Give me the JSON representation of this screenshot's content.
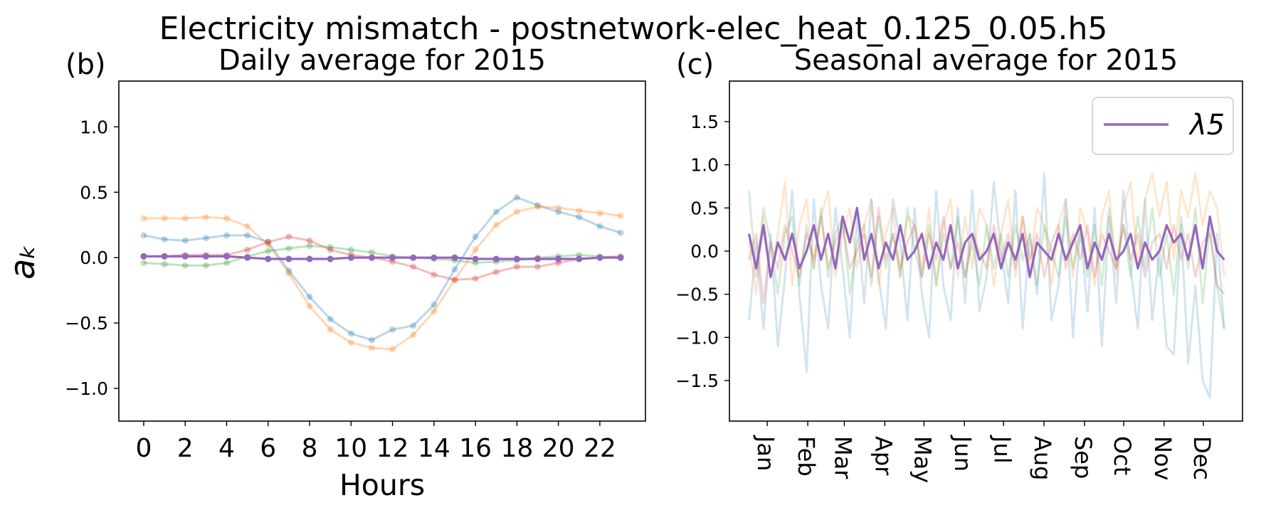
{
  "figure": {
    "suptitle": "Electricity mismatch - postnetwork-elec_heat_0.125_0.05.h5"
  },
  "chart_data": [
    {
      "type": "line",
      "panel_label": "(b)",
      "title": "Daily average for 2015",
      "xlabel": "Hours",
      "ylabel": "a_k",
      "ylabel_display": "aₖ",
      "xlim": [
        -1.2,
        24.2
      ],
      "ylim": [
        -1.25,
        1.35
      ],
      "xticks": [
        0,
        2,
        4,
        6,
        8,
        10,
        12,
        14,
        16,
        18,
        20,
        22
      ],
      "xtick_labels": [
        "0",
        "2",
        "4",
        "6",
        "8",
        "10",
        "12",
        "14",
        "16",
        "18",
        "20",
        "22"
      ],
      "yticks": [
        -1.0,
        -0.5,
        0.0,
        0.5,
        1.0
      ],
      "ytick_labels": [
        "−1.0",
        "−0.5",
        "0.0",
        "0.5",
        "1.0"
      ],
      "grid": false,
      "markers": true,
      "x": [
        0,
        1,
        2,
        3,
        4,
        5,
        6,
        7,
        8,
        9,
        10,
        11,
        12,
        13,
        14,
        15,
        16,
        17,
        18,
        19,
        20,
        21,
        22,
        23
      ],
      "series": [
        {
          "color": "#1f77b4",
          "opacity": 0.3,
          "values": [
            0.17,
            0.14,
            0.13,
            0.15,
            0.17,
            0.17,
            0.12,
            -0.1,
            -0.3,
            -0.47,
            -0.58,
            -0.63,
            -0.55,
            -0.52,
            -0.36,
            -0.09,
            0.16,
            0.35,
            0.46,
            0.4,
            0.35,
            0.31,
            0.24,
            0.19
          ]
        },
        {
          "color": "#ff7f0e",
          "opacity": 0.3,
          "values": [
            0.3,
            0.3,
            0.3,
            0.31,
            0.3,
            0.24,
            0.1,
            -0.12,
            -0.37,
            -0.55,
            -0.65,
            -0.69,
            -0.7,
            -0.59,
            -0.41,
            -0.17,
            0.06,
            0.25,
            0.35,
            0.39,
            0.38,
            0.36,
            0.34,
            0.32
          ]
        },
        {
          "color": "#2ca02c",
          "opacity": 0.3,
          "values": [
            -0.04,
            -0.05,
            -0.06,
            -0.06,
            -0.04,
            0.01,
            0.05,
            0.07,
            0.09,
            0.08,
            0.06,
            0.04,
            0.01,
            0.0,
            -0.01,
            -0.02,
            -0.04,
            -0.03,
            -0.02,
            0.0,
            0.01,
            0.02,
            0.01,
            0.0
          ]
        },
        {
          "color": "#d62728",
          "opacity": 0.3,
          "values": [
            0.01,
            0.01,
            0.02,
            0.02,
            0.02,
            0.06,
            0.12,
            0.16,
            0.13,
            0.06,
            0.02,
            0.0,
            -0.03,
            -0.07,
            -0.13,
            -0.17,
            -0.16,
            -0.11,
            -0.07,
            -0.07,
            -0.04,
            -0.01,
            0.0,
            0.01
          ]
        },
        {
          "name": "λ5",
          "color": "#9467bd",
          "opacity": 1.0,
          "values": [
            0.01,
            0.01,
            0.01,
            0.01,
            0.01,
            0.0,
            -0.01,
            -0.01,
            -0.01,
            -0.01,
            0.0,
            0.0,
            0.0,
            0.0,
            0.0,
            0.0,
            -0.01,
            -0.01,
            -0.01,
            -0.01,
            -0.01,
            -0.01,
            0.0,
            0.0
          ]
        }
      ]
    },
    {
      "type": "line",
      "panel_label": "(c)",
      "title": "Seasonal average for 2015",
      "xlabel": "",
      "ylabel": "",
      "xlim": [
        -14,
        379
      ],
      "ylim": [
        -1.97,
        1.97
      ],
      "xticks": [
        15,
        46,
        74,
        105,
        135,
        166,
        196,
        227,
        258,
        288,
        319,
        349
      ],
      "xtick_labels": [
        "Jan",
        "Feb",
        "Mar",
        "Apr",
        "May",
        "Jun",
        "Jul",
        "Aug",
        "Sep",
        "Oct",
        "Nov",
        "Dec"
      ],
      "yticks": [
        -1.5,
        -1.0,
        -0.5,
        0.0,
        0.5,
        1.0,
        1.5
      ],
      "ytick_labels": [
        "−1.5",
        "−1.0",
        "−0.5",
        "0.0",
        "0.5",
        "1.0",
        "1.5"
      ],
      "grid": false,
      "legend": {
        "position": "top-right",
        "entries": [
          "λ5"
        ]
      },
      "x_domain": {
        "start_day": 1,
        "end_day": 365
      },
      "series": [
        {
          "color": "#1f77b4",
          "opacity": 0.2,
          "values": [
            -0.8,
            0.1,
            -0.9,
            0.2,
            -1.1,
            -0.3,
            0.7,
            -0.5,
            -1.4,
            0.6,
            -0.4,
            -0.9,
            0.5,
            -0.2,
            -1.0,
            0.4,
            -0.6,
            0.6,
            -0.3,
            -0.9,
            0.6,
            0.1,
            -0.8,
            0.5,
            -0.5,
            -1.0,
            0.7,
            -0.4,
            -0.8,
            0.5,
            -0.6,
            0.7,
            -0.7,
            -0.3,
            0.8,
            0.0,
            -0.6,
            0.7,
            -0.9,
            0.2,
            -0.5,
            0.9,
            -0.8,
            -0.4,
            0.6,
            -1.0,
            0.3,
            -0.7,
            0.5,
            -1.1,
            0.4,
            -0.6,
            0.7,
            -0.2,
            -0.9,
            0.6,
            -0.8,
            0.0,
            -1.1,
            -1.2,
            0.3,
            -1.3,
            -0.4,
            -1.5,
            -1.7,
            0.2,
            -0.9
          ]
        },
        {
          "color": "#ff7f0e",
          "opacity": 0.2,
          "values": [
            0.1,
            -0.5,
            0.4,
            -0.3,
            0.2,
            0.8,
            -0.4,
            0.3,
            0.6,
            -0.2,
            0.4,
            0.7,
            -0.3,
            0.2,
            0.5,
            -0.2,
            0.3,
            0.6,
            -0.4,
            0.2,
            0.5,
            -0.3,
            0.4,
            0.3,
            -0.2,
            0.5,
            -0.4,
            0.3,
            0.6,
            -0.3,
            0.4,
            -0.2,
            0.5,
            0.3,
            -0.4,
            0.2,
            0.6,
            -0.3,
            0.4,
            -0.2,
            0.5,
            0.3,
            -0.4,
            0.3,
            0.6,
            -0.3,
            0.5,
            0.2,
            -0.4,
            0.4,
            0.7,
            -0.3,
            0.5,
            0.8,
            -0.2,
            0.6,
            0.9,
            0.4,
            0.8,
            -0.1,
            0.7,
            0.4,
            0.9,
            0.3,
            0.7,
            0.5,
            -0.3
          ]
        },
        {
          "color": "#2ca02c",
          "opacity": 0.2,
          "values": [
            0.7,
            -0.3,
            0.5,
            0.1,
            -0.5,
            0.2,
            0.4,
            -0.4,
            0.3,
            -0.2,
            0.5,
            -0.3,
            0.2,
            0.4,
            -0.5,
            0.1,
            0.3,
            -0.4,
            0.4,
            -0.2,
            0.2,
            -0.3,
            0.5,
            0.0,
            -0.3,
            0.3,
            -0.4,
            0.2,
            -0.2,
            0.4,
            -0.3,
            0.1,
            -0.4,
            0.3,
            -0.2,
            0.2,
            -0.3,
            0.3,
            -0.1,
            0.2,
            -0.4,
            0.3,
            0.0,
            -0.3,
            0.4,
            -0.2,
            0.2,
            -0.3,
            0.3,
            -0.4,
            0.5,
            -0.2,
            0.3,
            -0.3,
            0.4,
            -0.2,
            0.5,
            -0.3,
            0.2,
            -0.5,
            0.4,
            -0.2,
            0.5,
            -0.6,
            0.3,
            -0.4,
            -0.9
          ]
        },
        {
          "color": "#d62728",
          "opacity": 0.2,
          "values": [
            -0.1,
            0.2,
            -0.6,
            0.1,
            -0.2,
            0.3,
            0.0,
            -0.3,
            0.2,
            -0.1,
            0.4,
            -0.2,
            0.1,
            0.3,
            -0.2,
            0.0,
            0.2,
            -0.3,
            0.5,
            -0.1,
            0.2,
            -0.2,
            0.1,
            0.3,
            -0.3,
            0.2,
            -0.1,
            0.4,
            -0.2,
            0.1,
            -0.3,
            0.2,
            0.0,
            -0.2,
            0.3,
            -0.1,
            0.2,
            -0.2,
            0.4,
            -0.1,
            0.2,
            -0.3,
            0.1,
            0.3,
            -0.2,
            0.2,
            -0.1,
            0.3,
            -0.3,
            0.2,
            0.0,
            -0.2,
            0.3,
            -0.1,
            0.2,
            -0.3,
            0.1,
            0.2,
            -0.2,
            0.3,
            -0.1,
            0.2,
            -0.3,
            0.1,
            0.2,
            -0.4,
            -0.5
          ]
        },
        {
          "name": "λ5",
          "color": "#9467bd",
          "opacity": 1.0,
          "values": [
            0.2,
            -0.2,
            0.3,
            -0.3,
            0.1,
            -0.1,
            0.2,
            -0.2,
            0.0,
            0.3,
            -0.1,
            0.2,
            -0.2,
            0.4,
            0.1,
            0.5,
            -0.1,
            0.2,
            -0.2,
            0.1,
            -0.1,
            0.3,
            -0.1,
            0.0,
            0.2,
            -0.2,
            0.1,
            -0.1,
            0.3,
            -0.2,
            0.1,
            0.2,
            -0.1,
            0.0,
            0.2,
            -0.2,
            0.1,
            -0.1,
            0.2,
            -0.3,
            0.1,
            0.0,
            -0.1,
            0.2,
            -0.1,
            0.1,
            0.3,
            -0.2,
            0.1,
            -0.1,
            0.2,
            -0.1,
            0.0,
            0.2,
            -0.2,
            0.1,
            -0.1,
            0.0,
            0.3,
            0.1,
            0.2,
            -0.1,
            0.3,
            -0.2,
            0.4,
            0.0,
            -0.1
          ]
        }
      ]
    }
  ]
}
